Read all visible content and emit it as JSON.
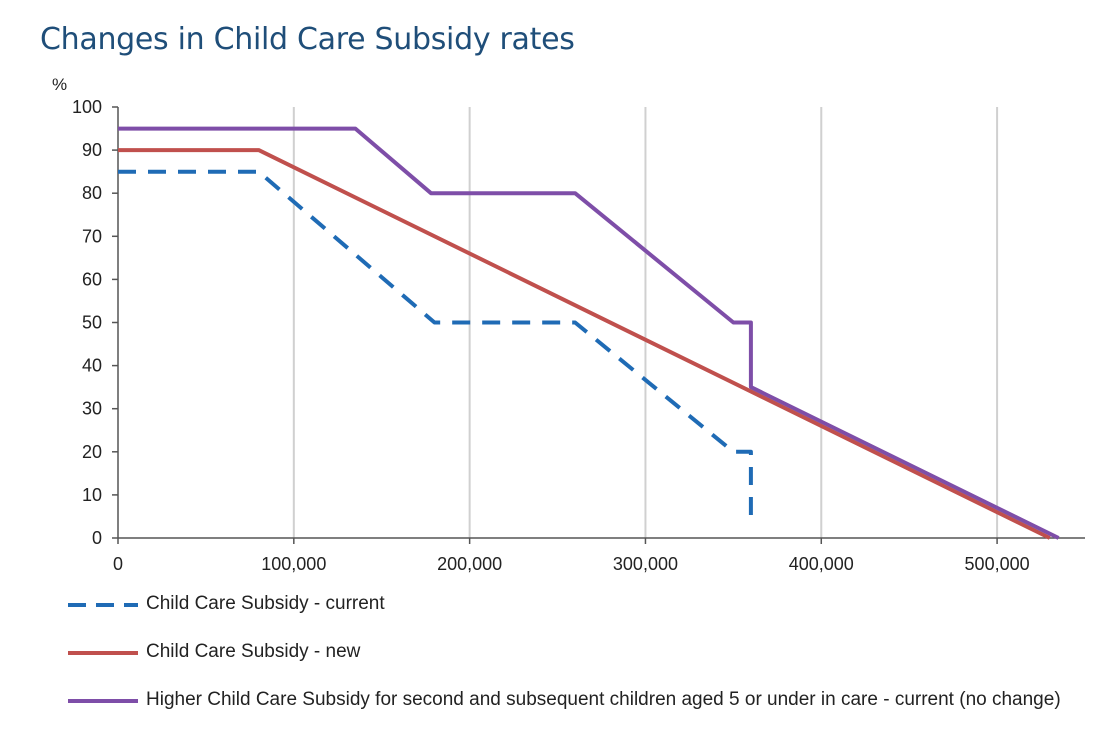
{
  "chart_data": {
    "type": "line",
    "title": "Changes in Child Care Subsidy rates",
    "ylabel": "%",
    "xlabel": "",
    "xlim": [
      0,
      550000
    ],
    "ylim": [
      0,
      100
    ],
    "xticks": [
      0,
      100000,
      200000,
      300000,
      400000,
      500000
    ],
    "xtick_labels": [
      "0",
      "100,000",
      "200,000",
      "300,000",
      "400,000",
      "500,000"
    ],
    "yticks": [
      0,
      10,
      20,
      30,
      40,
      50,
      60,
      70,
      80,
      90,
      100
    ],
    "ytick_labels": [
      "0",
      "10",
      "20",
      "30",
      "40",
      "50",
      "60",
      "70",
      "80",
      "90",
      "100"
    ],
    "grid": "vertical",
    "legend_position": "bottom",
    "series": [
      {
        "name": "Child Care Subsidy - current",
        "style": "dashed",
        "color": "#1f6bb5",
        "points": [
          [
            0,
            85
          ],
          [
            80000,
            85
          ],
          [
            180000,
            50
          ],
          [
            260000,
            50
          ],
          [
            350000,
            20
          ],
          [
            360000,
            20
          ],
          [
            360000,
            3
          ]
        ]
      },
      {
        "name": "Child Care Subsidy - new",
        "style": "solid",
        "color": "#c0504d",
        "points": [
          [
            0,
            90
          ],
          [
            80000,
            90
          ],
          [
            530000,
            0
          ]
        ]
      },
      {
        "name": "Higher Child Care Subsidy for second and subsequent children aged 5 or under in care - current (no change)",
        "style": "solid",
        "color": "#7e4ea8",
        "points": [
          [
            0,
            95
          ],
          [
            135000,
            95
          ],
          [
            178000,
            80
          ],
          [
            260000,
            80
          ],
          [
            350000,
            50
          ],
          [
            360000,
            50
          ],
          [
            360000,
            35
          ],
          [
            535000,
            0
          ]
        ]
      }
    ]
  }
}
